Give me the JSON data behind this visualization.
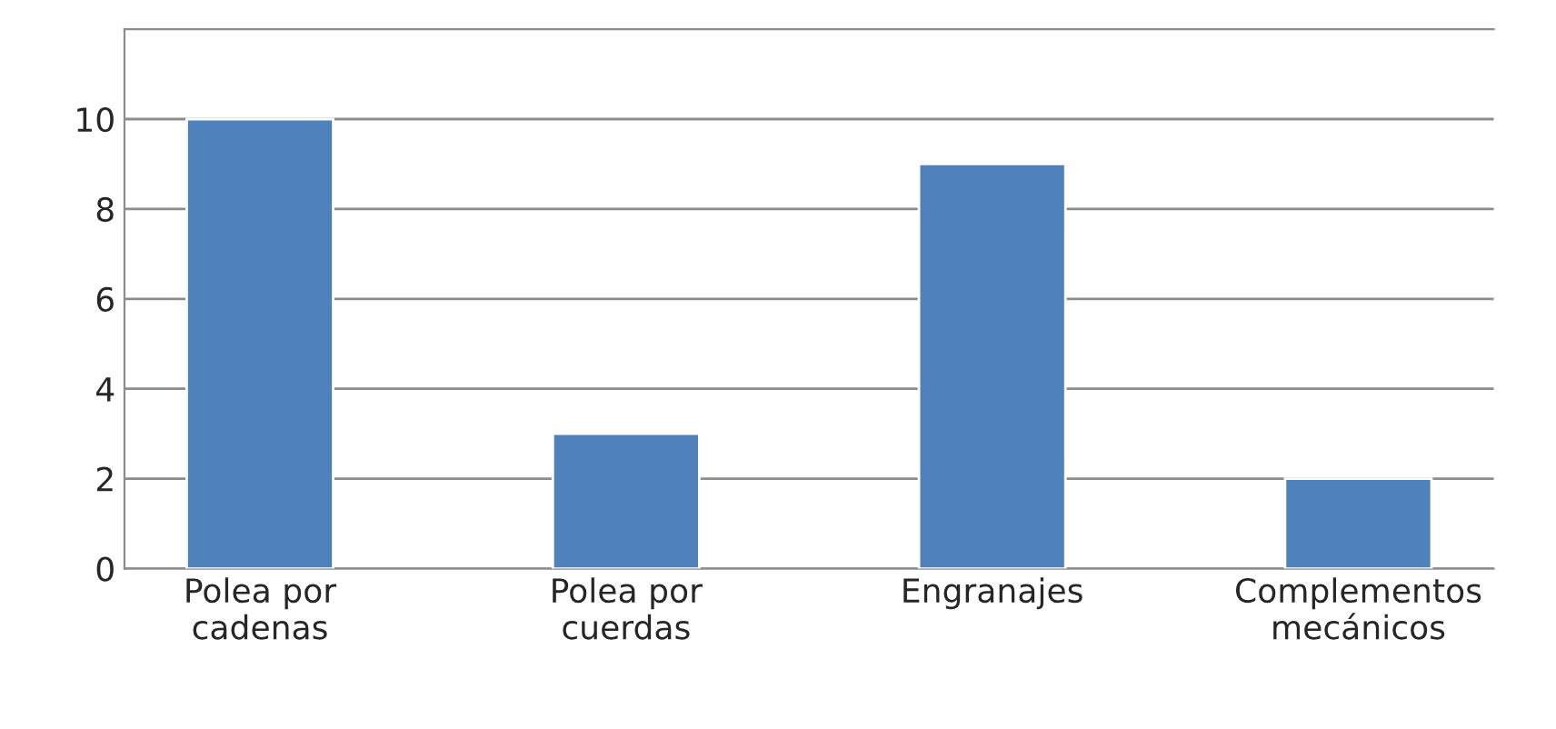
{
  "chart_data": {
    "type": "bar",
    "categories": [
      "Polea por\ncadenas",
      "Polea por\ncuerdas",
      "Engranajes",
      "Complementos\nmecánicos"
    ],
    "values": [
      10,
      3,
      9,
      2
    ],
    "color": "#4f81bd",
    "ylim": [
      0,
      12
    ],
    "yticks": [
      0,
      2,
      4,
      6,
      8,
      10
    ],
    "grid": "y",
    "legend": false
  }
}
